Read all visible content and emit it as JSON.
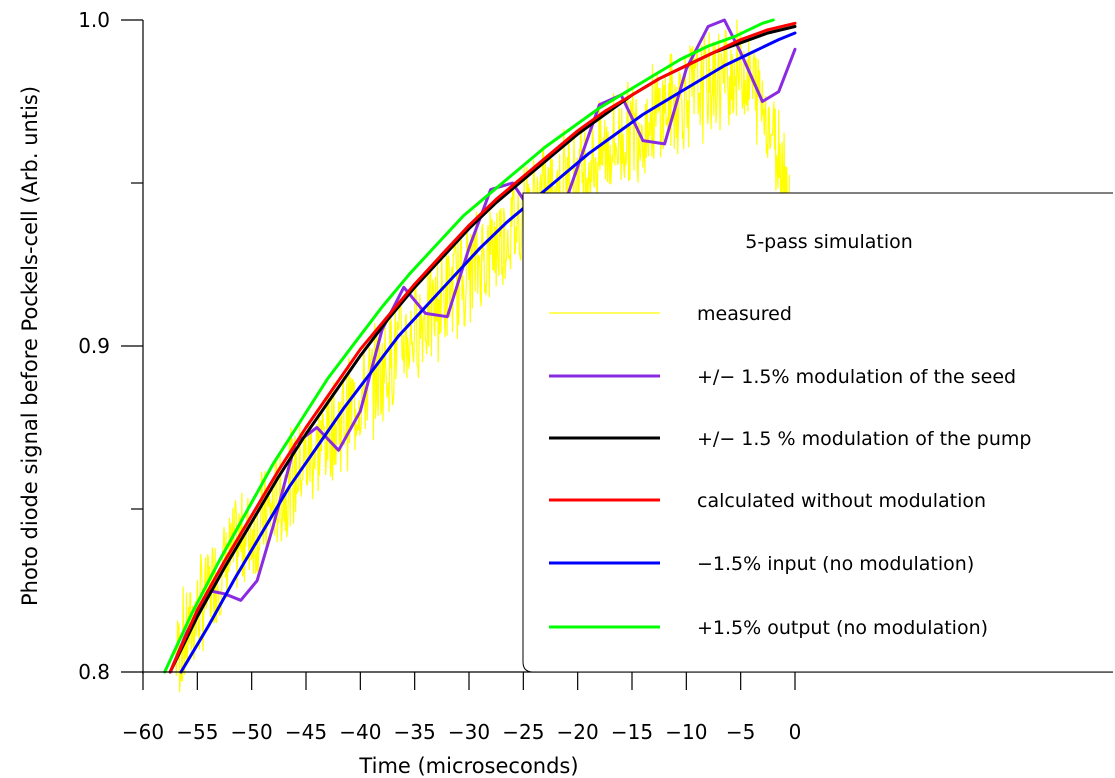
{
  "chart_data": {
    "type": "line",
    "title": "",
    "xlabel": "Time (microseconds)",
    "ylabel": "Photo diode signal before Pockels-cell (Arb. untis)",
    "xlim": [
      -60,
      0
    ],
    "ylim": [
      0.8,
      1.0
    ],
    "x_ticks": [
      -60,
      -55,
      -50,
      -45,
      -40,
      -35,
      -30,
      -25,
      -20,
      -15,
      -10,
      -5,
      0
    ],
    "x_tick_labels": [
      "−60",
      "−55",
      "−50",
      "−45",
      "−40",
      "−35",
      "−30",
      "−25",
      "−20",
      "−15",
      "−10",
      "−5",
      "0"
    ],
    "y_major_ticks": [
      0.8,
      0.9,
      1.0
    ],
    "y_tick_labels": [
      "0.8",
      "0.9",
      "1.0"
    ],
    "y_minor_ticks": [
      0.85,
      0.95
    ],
    "grid": false,
    "legend": {
      "title": "5-pass simulation",
      "placement": "bottom-right"
    },
    "series": [
      {
        "name": "measured",
        "color": "#ffff00",
        "style": "noisy",
        "x": [
          -57,
          -55,
          -53,
          -51,
          -49,
          -47,
          -45,
          -43,
          -41,
          -39,
          -37,
          -35,
          -33,
          -31,
          -29,
          -27,
          -25,
          -23,
          -21,
          -19,
          -17,
          -15,
          -13,
          -11,
          -9,
          -7,
          -5,
          -3,
          -2,
          -1,
          -0.5
        ],
        "y": [
          0.805,
          0.818,
          0.83,
          0.84,
          0.846,
          0.855,
          0.865,
          0.873,
          0.88,
          0.888,
          0.897,
          0.905,
          0.912,
          0.92,
          0.926,
          0.933,
          0.94,
          0.946,
          0.951,
          0.956,
          0.961,
          0.966,
          0.97,
          0.975,
          0.979,
          0.982,
          0.985,
          0.975,
          0.965,
          0.955,
          0.945
        ]
      },
      {
        "name": "+/− 1.5% modulation of the seed",
        "color": "#8a2be2",
        "x": [
          -57.5,
          -56,
          -54,
          -52.5,
          -51,
          -49.5,
          -48,
          -46,
          -44,
          -42,
          -40,
          -38,
          -36,
          -34,
          -32,
          -30,
          -28,
          -26,
          -24,
          -22,
          -20,
          -18,
          -16,
          -14,
          -12,
          -10,
          -8,
          -6.5,
          -5,
          -3,
          -1.5,
          0
        ],
        "y": [
          0.8,
          0.812,
          0.825,
          0.824,
          0.822,
          0.828,
          0.845,
          0.87,
          0.875,
          0.868,
          0.88,
          0.905,
          0.918,
          0.91,
          0.909,
          0.93,
          0.948,
          0.95,
          0.94,
          0.936,
          0.955,
          0.974,
          0.977,
          0.963,
          0.962,
          0.985,
          0.998,
          1.0,
          0.99,
          0.975,
          0.978,
          0.991
        ]
      },
      {
        "name": "+/− 1.5 % modulation of the pump",
        "color": "#000000",
        "x": [
          -57.5,
          -55,
          -52.5,
          -50,
          -47.5,
          -45,
          -42.5,
          -40,
          -37.5,
          -35,
          -32.5,
          -30,
          -27.5,
          -25,
          -22.5,
          -20,
          -17.5,
          -15,
          -12.5,
          -10,
          -7.5,
          -5,
          -2.5,
          0
        ],
        "y": [
          0.8,
          0.817,
          0.832,
          0.846,
          0.86,
          0.873,
          0.885,
          0.897,
          0.908,
          0.918,
          0.927,
          0.936,
          0.944,
          0.951,
          0.958,
          0.965,
          0.971,
          0.977,
          0.982,
          0.986,
          0.99,
          0.993,
          0.996,
          0.998
        ]
      },
      {
        "name": "calculated without modulation",
        "color": "#ff0000",
        "x": [
          -57.5,
          -55,
          -52.5,
          -50,
          -47.5,
          -45,
          -42.5,
          -40,
          -37.5,
          -35,
          -32.5,
          -30,
          -27.5,
          -25,
          -22.5,
          -20,
          -17.5,
          -15,
          -12.5,
          -10,
          -7.5,
          -5,
          -2.5,
          0
        ],
        "y": [
          0.8,
          0.819,
          0.834,
          0.848,
          0.862,
          0.875,
          0.887,
          0.899,
          0.909,
          0.919,
          0.928,
          0.937,
          0.945,
          0.952,
          0.959,
          0.966,
          0.972,
          0.977,
          0.982,
          0.986,
          0.99,
          0.994,
          0.997,
          0.999
        ]
      },
      {
        "name": "−1.5% input (no modulation)",
        "color": "#0000ff",
        "x": [
          -56.5,
          -54,
          -51.5,
          -49,
          -46.5,
          -44,
          -41.5,
          -39,
          -36.5,
          -34,
          -31.5,
          -29,
          -26.5,
          -24,
          -21.5,
          -19,
          -16.5,
          -14,
          -11.5,
          -9,
          -6.5,
          -4,
          -1.5,
          0
        ],
        "y": [
          0.8,
          0.814,
          0.829,
          0.843,
          0.857,
          0.869,
          0.881,
          0.892,
          0.903,
          0.912,
          0.921,
          0.93,
          0.938,
          0.945,
          0.952,
          0.959,
          0.965,
          0.971,
          0.976,
          0.981,
          0.986,
          0.99,
          0.994,
          0.996
        ]
      },
      {
        "name": "+1.5% output (no modulation)",
        "color": "#00ff00",
        "x": [
          -58,
          -55.5,
          -53,
          -50.5,
          -48,
          -45.5,
          -43,
          -40.5,
          -38,
          -35.5,
          -33,
          -30.5,
          -28,
          -25.5,
          -23,
          -20.5,
          -18,
          -15.5,
          -13,
          -10.5,
          -8,
          -5.5,
          -3,
          -2
        ],
        "y": [
          0.8,
          0.818,
          0.834,
          0.849,
          0.864,
          0.877,
          0.89,
          0.901,
          0.912,
          0.922,
          0.931,
          0.94,
          0.947,
          0.954,
          0.961,
          0.967,
          0.973,
          0.978,
          0.983,
          0.988,
          0.992,
          0.995,
          0.999,
          1.0
        ]
      }
    ]
  }
}
